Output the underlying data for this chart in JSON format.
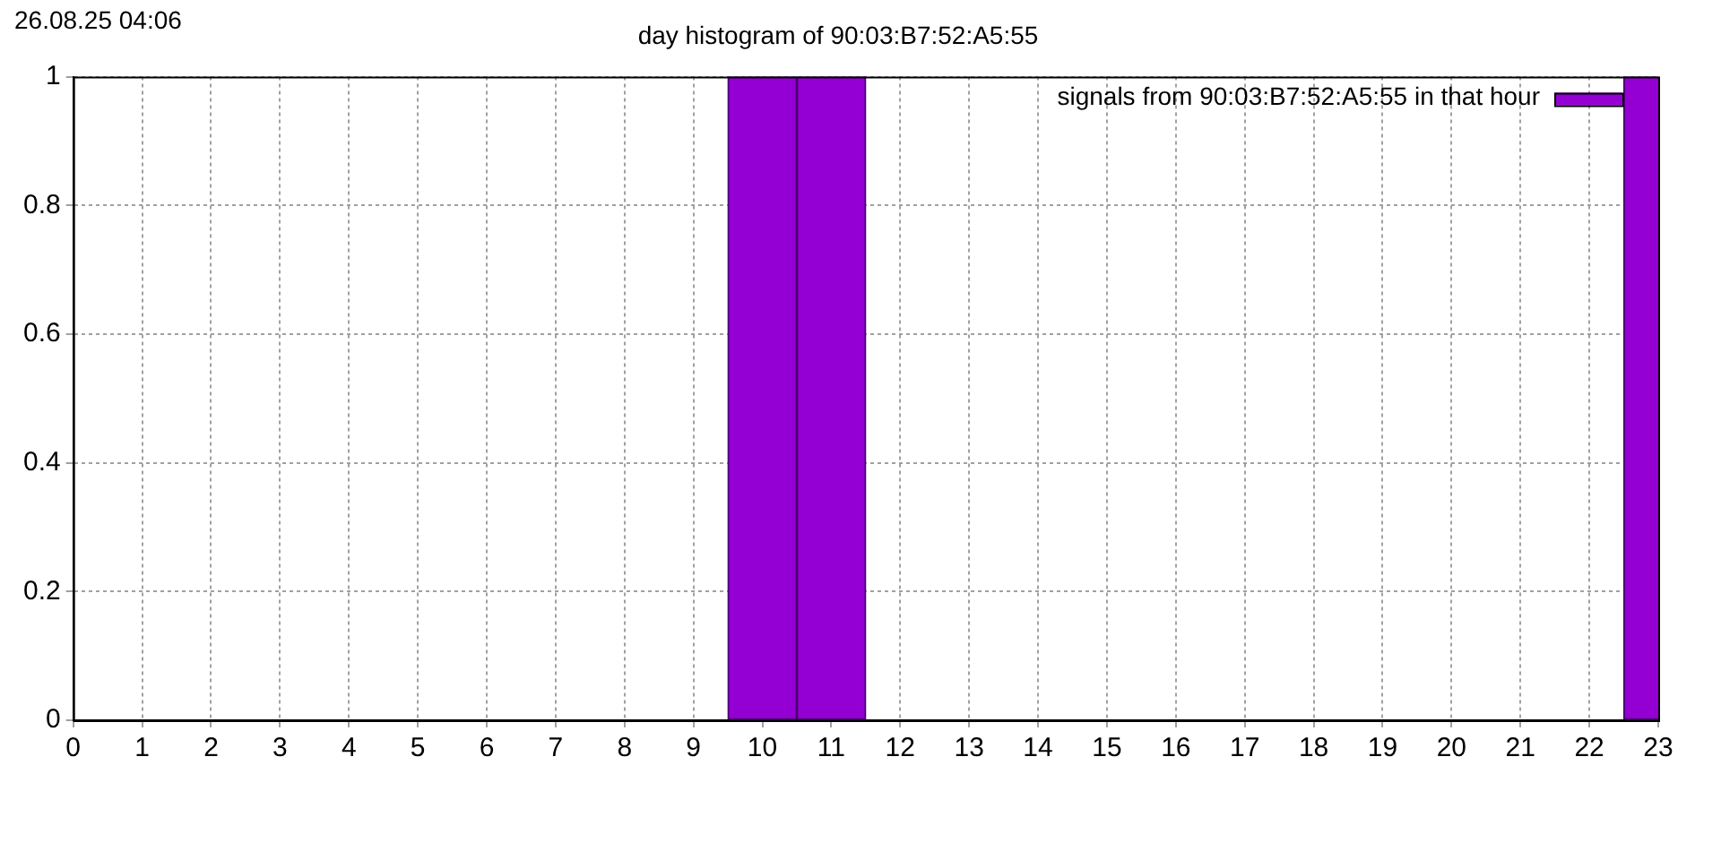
{
  "chart_data": {
    "type": "bar",
    "title": "day histogram of 90:03:B7:52:A5:55",
    "annotations": [
      "26.08.25 04:06"
    ],
    "x": [
      0,
      1,
      2,
      3,
      4,
      5,
      6,
      7,
      8,
      9,
      10,
      11,
      12,
      13,
      14,
      15,
      16,
      17,
      18,
      19,
      20,
      21,
      22,
      23
    ],
    "xlim": [
      0,
      23
    ],
    "xticks": [
      0,
      1,
      2,
      3,
      4,
      5,
      6,
      7,
      8,
      9,
      10,
      11,
      12,
      13,
      14,
      15,
      16,
      17,
      18,
      19,
      20,
      21,
      22,
      23
    ],
    "series": [
      {
        "name": "signals from 90:03:B7:52:A5:55 in that hour",
        "color": "#9400d3",
        "values": [
          0,
          0,
          0,
          0,
          0,
          0,
          0,
          0,
          0,
          0,
          1,
          1,
          0,
          0,
          0,
          0,
          0,
          0,
          0,
          0,
          0,
          0,
          0,
          1
        ]
      }
    ],
    "ylim": [
      0,
      1
    ],
    "yticks": [
      0,
      0.2,
      0.4,
      0.6,
      0.8,
      1
    ],
    "grid": true,
    "legend": "top right"
  }
}
